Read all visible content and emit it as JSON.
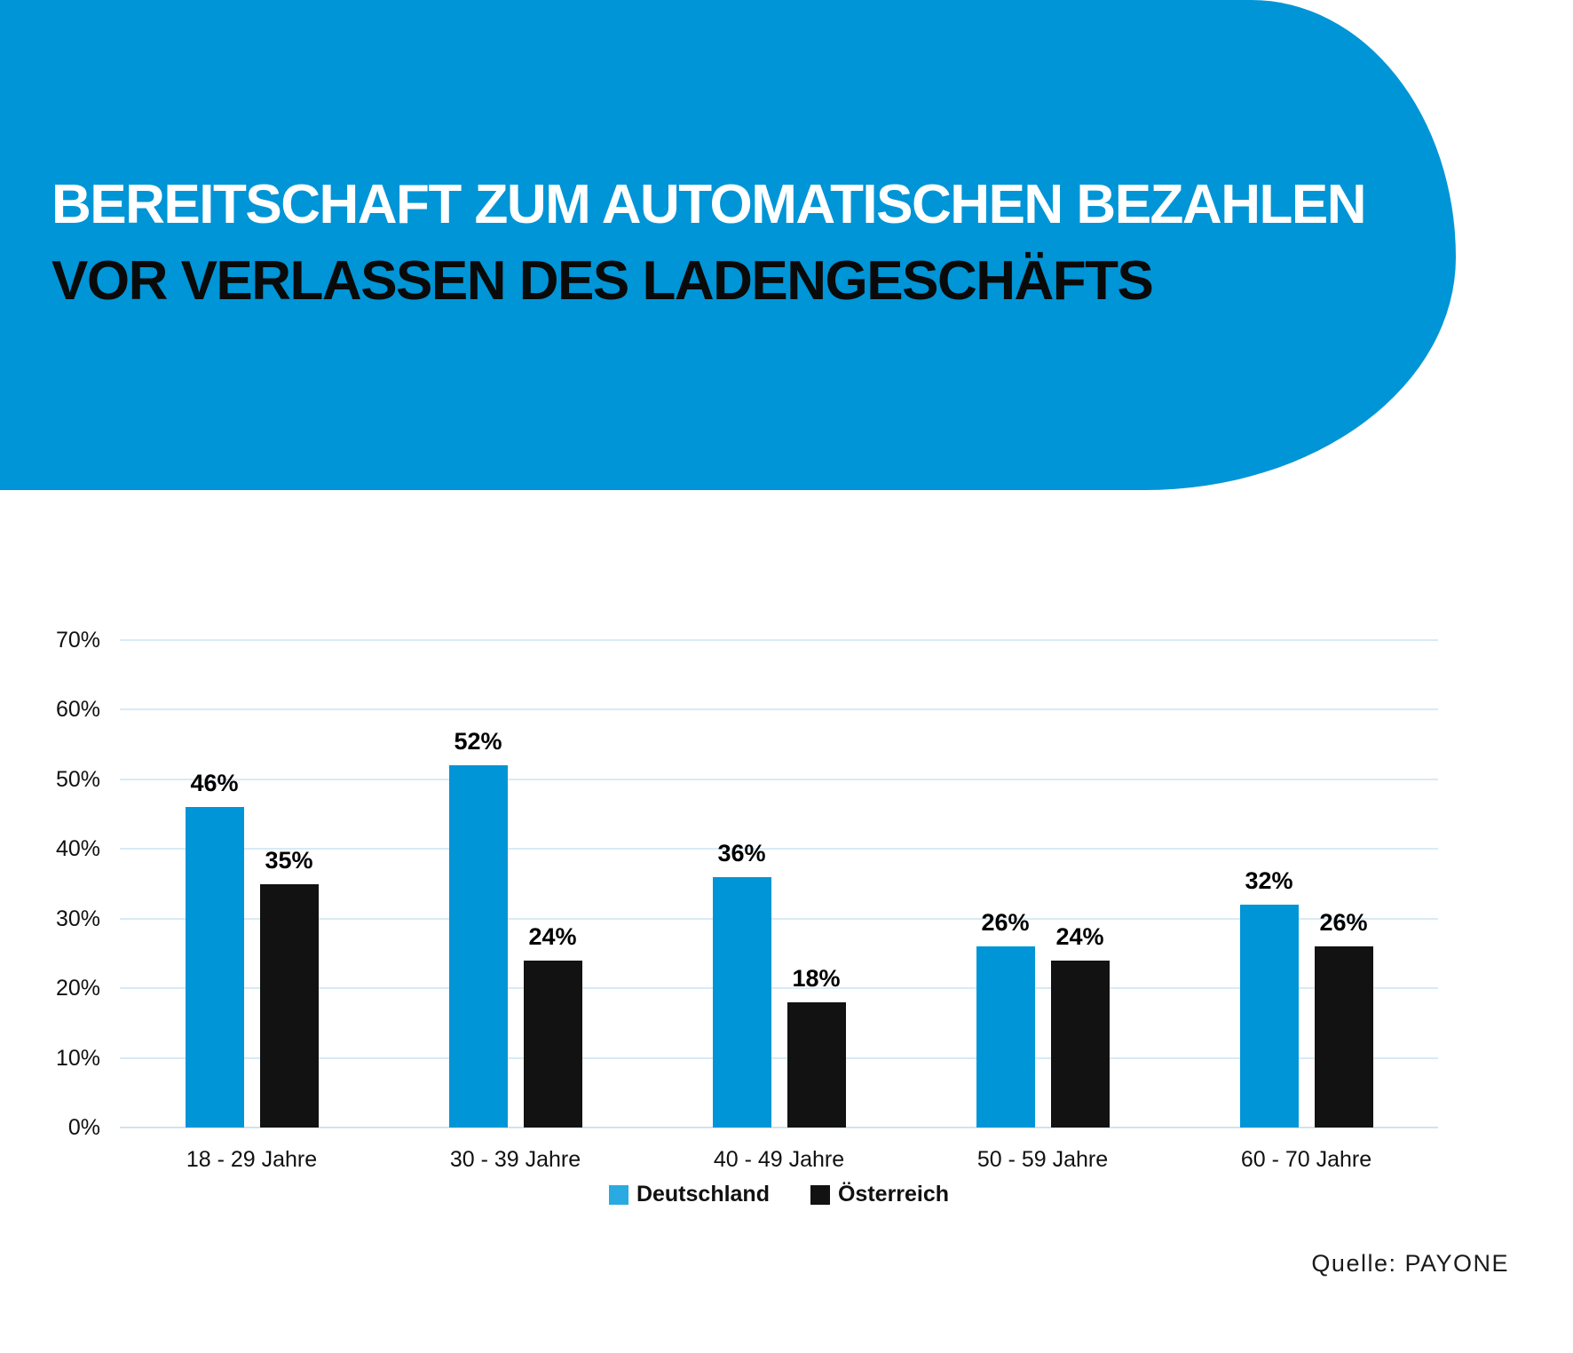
{
  "header": {
    "title_line1": "BEREITSCHAFT ZUM AUTOMATISCHEN BEZAHLEN",
    "title_line2": "VOR VERLASSEN DES LADENGESCHÄFTS",
    "banner_color": "#0095d6",
    "title_line1_color": "#ffffff",
    "title_line2_color": "#0a0a0a"
  },
  "chart_data": {
    "type": "bar",
    "title": "Bereitschaft zum automatischen Bezahlen vor Verlassen des Ladengeschäfts",
    "categories": [
      "18 - 29 Jahre",
      "30 - 39 Jahre",
      "40 - 49 Jahre",
      "50 - 59 Jahre",
      "60 - 70 Jahre"
    ],
    "series": [
      {
        "key": "deutschland",
        "name": "Deutschland",
        "color": "#0095d6",
        "legend_color": "#29abe2",
        "values": [
          46,
          52,
          36,
          26,
          32
        ]
      },
      {
        "key": "oesterreich",
        "name": "Österreich",
        "color": "#121212",
        "legend_color": "#121212",
        "values": [
          35,
          24,
          18,
          24,
          26
        ]
      }
    ],
    "value_suffix": "%",
    "xlabel": "",
    "ylabel": "",
    "y_axis": {
      "min": 0,
      "max": 70,
      "step": 10,
      "tick_suffix": "%"
    },
    "grid": true,
    "gridline_color": "#d8eaf6",
    "baseline_color": "#d3e2ec",
    "legend_position": "bottom"
  },
  "source": {
    "label": "Quelle: PAYONE"
  }
}
